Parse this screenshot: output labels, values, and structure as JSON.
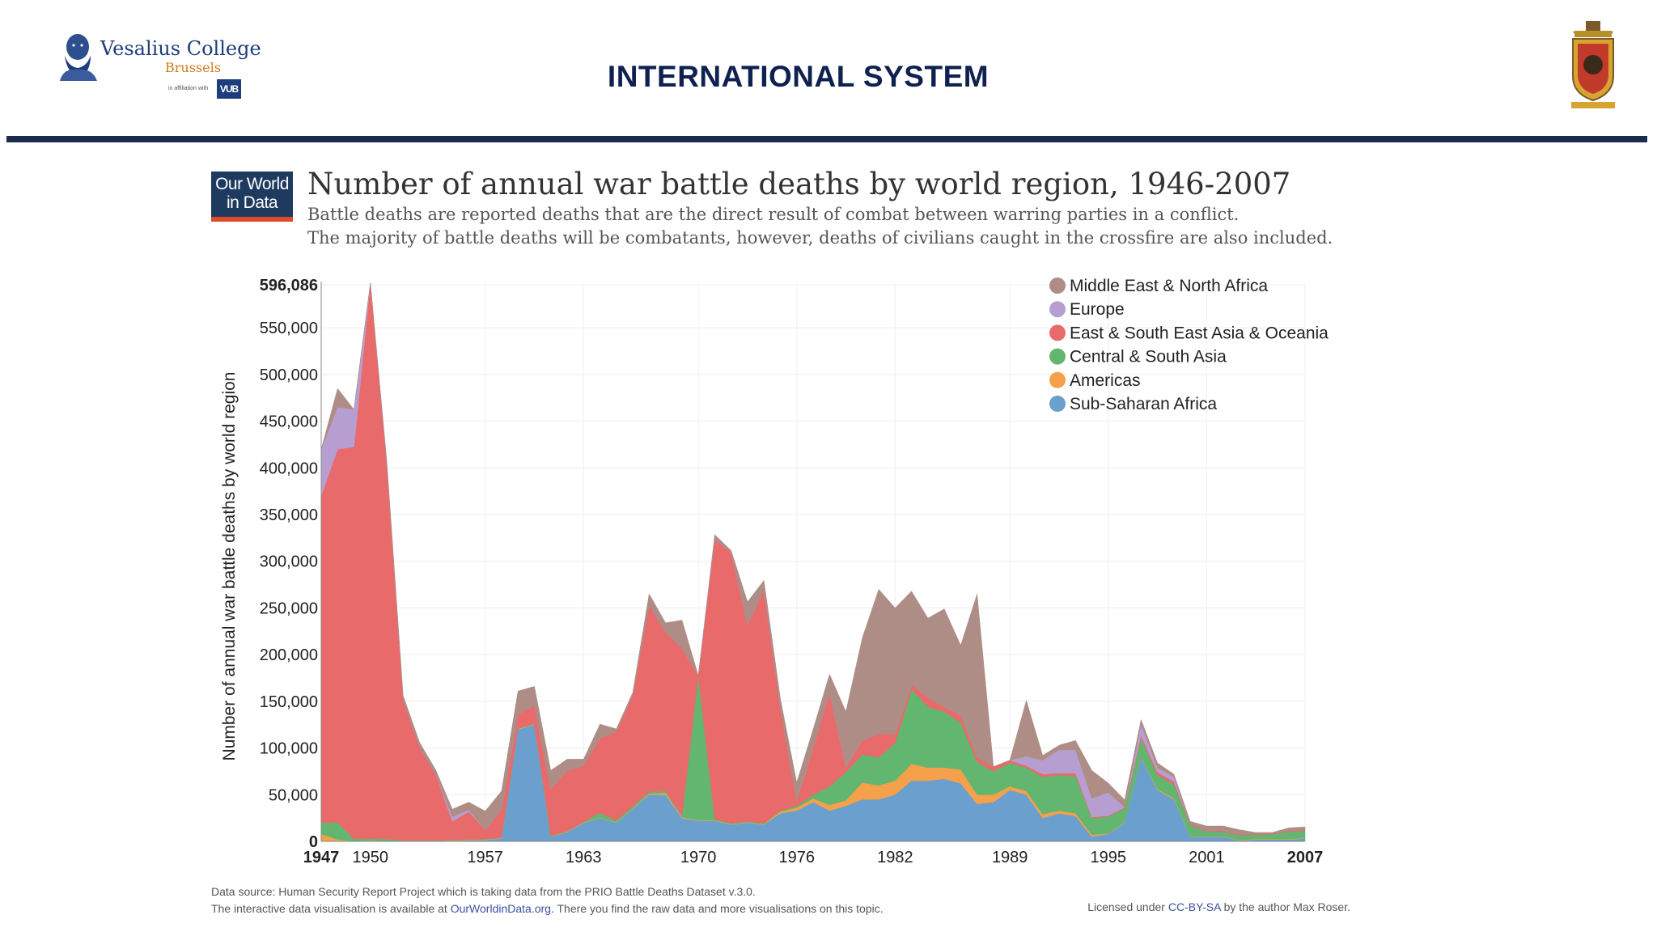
{
  "header": {
    "slide_title": "INTERNATIONAL SYSTEM",
    "logo": {
      "name": "Vesalius College",
      "city": "Brussels",
      "affiliation": "in affiliation with",
      "badge": "VUB"
    }
  },
  "owid_logo": {
    "line1": "Our World",
    "line2": "in Data"
  },
  "chart_data": {
    "type": "area",
    "stacked": true,
    "title": "Number of annual war battle deaths by world region, 1946-2007",
    "subtitle": [
      "Battle deaths are reported deaths that are the direct result of combat between warring parties in a conflict.",
      "The majority of battle deaths will be combatants, however, deaths of civilians caught in the crossfire are also included."
    ],
    "ylabel": "Number of annual war battle deaths by world region",
    "xlim": [
      1947,
      2007
    ],
    "ylim": [
      0,
      596086
    ],
    "y_ticks": [
      "596,086",
      "550,000",
      "500,000",
      "450,000",
      "400,000",
      "350,000",
      "300,000",
      "250,000",
      "200,000",
      "150,000",
      "100,000",
      "50,000",
      "0"
    ],
    "x_ticks": [
      "1947",
      "1950",
      "1957",
      "1963",
      "1970",
      "1976",
      "1982",
      "1989",
      "1995",
      "2001",
      "2007"
    ],
    "grid": true,
    "legend_position": "top-right",
    "x": [
      1947,
      1948,
      1949,
      1950,
      1951,
      1952,
      1953,
      1954,
      1955,
      1956,
      1957,
      1958,
      1959,
      1960,
      1961,
      1962,
      1963,
      1964,
      1965,
      1966,
      1967,
      1968,
      1969,
      1970,
      1971,
      1972,
      1973,
      1974,
      1975,
      1976,
      1977,
      1978,
      1979,
      1980,
      1981,
      1982,
      1983,
      1984,
      1985,
      1986,
      1987,
      1988,
      1989,
      1990,
      1991,
      1992,
      1993,
      1994,
      1995,
      1996,
      1997,
      1998,
      1999,
      2000,
      2001,
      2002,
      2003,
      2004,
      2005,
      2006,
      2007
    ],
    "series": [
      {
        "name": "Sub-Saharan Africa",
        "color": "#6a9fce",
        "values": [
          0,
          0,
          0,
          0,
          0,
          0,
          0,
          0,
          500,
          1000,
          1500,
          3000,
          120000,
          125000,
          5000,
          10000,
          20000,
          25000,
          20000,
          35000,
          50000,
          50000,
          25000,
          22000,
          22000,
          18000,
          20000,
          18000,
          30000,
          33000,
          42000,
          33000,
          38000,
          45000,
          45000,
          50000,
          65000,
          65000,
          67000,
          62000,
          40000,
          42000,
          55000,
          50000,
          25000,
          30000,
          27000,
          5000,
          8000,
          20000,
          90000,
          55000,
          45000,
          5000,
          5000,
          5000,
          1000,
          2000,
          2000,
          2000,
          3000
        ]
      },
      {
        "name": "Americas",
        "color": "#f5a04a",
        "values": [
          8000,
          2000,
          500,
          1000,
          500,
          500,
          500,
          500,
          500,
          500,
          500,
          500,
          500,
          500,
          500,
          500,
          500,
          500,
          500,
          500,
          1000,
          2000,
          1000,
          500,
          500,
          500,
          500,
          500,
          2000,
          3000,
          4000,
          6000,
          6000,
          18000,
          15000,
          15000,
          18000,
          14000,
          12000,
          15000,
          10000,
          8000,
          4000,
          4000,
          4000,
          3000,
          3000,
          2000,
          500,
          500,
          500,
          1000,
          1000,
          500,
          500,
          500,
          500,
          500,
          500,
          500,
          500
        ]
      },
      {
        "name": "Central & South Asia",
        "color": "#62b66f",
        "values": [
          12000,
          18000,
          2000,
          2000,
          2000,
          500,
          500,
          500,
          500,
          500,
          500,
          500,
          500,
          500,
          500,
          500,
          500,
          5000,
          2000,
          2000,
          2000,
          2000,
          1000,
          155000,
          1000,
          1000,
          1000,
          1000,
          1000,
          2000,
          4000,
          20000,
          30000,
          30000,
          30000,
          40000,
          80000,
          65000,
          60000,
          50000,
          35000,
          25000,
          25000,
          25000,
          40000,
          38000,
          40000,
          18000,
          18000,
          15000,
          20000,
          15000,
          15000,
          12000,
          5000,
          5000,
          5000,
          5000,
          5000,
          8000,
          8000
        ]
      },
      {
        "name": "East & South East Asia & Oceania",
        "color": "#e86a6a",
        "values": [
          350000,
          400000,
          420000,
          595000,
          400000,
          150000,
          100000,
          70000,
          20000,
          30000,
          10000,
          30000,
          15000,
          20000,
          50000,
          65000,
          60000,
          80000,
          95000,
          120000,
          200000,
          170000,
          180000,
          0,
          300000,
          290000,
          210000,
          250000,
          110000,
          5000,
          50000,
          100000,
          5000,
          15000,
          25000,
          10000,
          5000,
          10000,
          5000,
          8000,
          5000,
          5000,
          3000,
          2000,
          3000,
          2000,
          3000,
          1000,
          1000,
          1000,
          3000,
          3000,
          3000,
          1000,
          1000,
          1000,
          1000,
          1000,
          1000,
          1000,
          1000
        ]
      },
      {
        "name": "Europe",
        "color": "#b79ed1",
        "values": [
          50000,
          45000,
          40000,
          0,
          0,
          0,
          0,
          0,
          5000,
          2000,
          0,
          0,
          0,
          0,
          0,
          0,
          0,
          0,
          0,
          0,
          0,
          0,
          0,
          0,
          0,
          0,
          0,
          0,
          0,
          0,
          0,
          0,
          0,
          0,
          0,
          0,
          0,
          0,
          0,
          0,
          0,
          0,
          0,
          10000,
          15000,
          25000,
          25000,
          20000,
          25000,
          0,
          12000,
          5000,
          5000,
          0,
          0,
          0,
          0,
          0,
          0,
          0,
          0
        ]
      },
      {
        "name": "Middle East & North Africa",
        "color": "#ad8d85",
        "values": [
          0,
          20000,
          0,
          0,
          5000,
          5000,
          5000,
          5000,
          8000,
          8000,
          20000,
          20000,
          25000,
          20000,
          20000,
          12000,
          7000,
          15000,
          3000,
          2000,
          12000,
          10000,
          30000,
          0,
          5000,
          2000,
          25000,
          10000,
          10000,
          20000,
          20000,
          20000,
          60000,
          110000,
          155000,
          135000,
          100000,
          85000,
          105000,
          75000,
          175000,
          0,
          0,
          60000,
          5000,
          5000,
          10000,
          30000,
          10000,
          8000,
          5000,
          5000,
          3000,
          3000,
          5000,
          5000,
          5000,
          1000,
          1000,
          3000,
          3000
        ]
      }
    ]
  },
  "footer": {
    "source_prefix": "Data source:  Human Security Report Project which is taking data from the PRIO Battle Deaths Dataset v.3.0.",
    "interactive_prefix": "The interactive data visualisation is available at ",
    "interactive_link": "OurWorldinData.org",
    "interactive_suffix": ". There you find the raw data and more visualisations on this topic.",
    "license_prefix": "Licensed under ",
    "license_link": "CC-BY-SA",
    "license_suffix": " by the author Max Roser."
  }
}
